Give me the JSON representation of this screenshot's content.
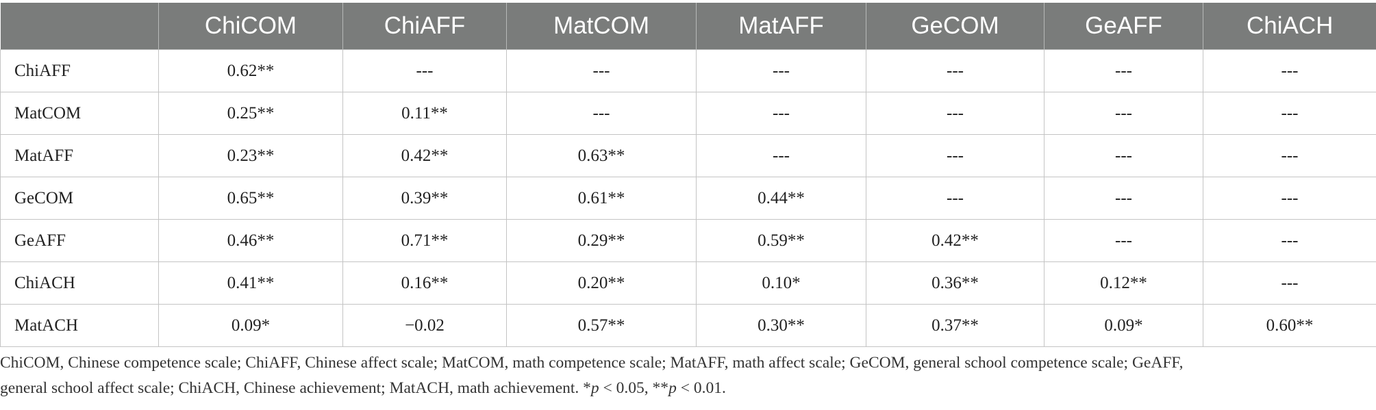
{
  "table": {
    "columns": [
      "",
      "ChiCOM",
      "ChiAFF",
      "MatCOM",
      "MatAFF",
      "GeCOM",
      "GeAFF",
      "ChiACH"
    ],
    "rows": [
      {
        "label": "ChiAFF",
        "cells": [
          "0.62**",
          "---",
          "---",
          "---",
          "---",
          "---",
          "---"
        ]
      },
      {
        "label": "MatCOM",
        "cells": [
          "0.25**",
          "0.11**",
          "---",
          "---",
          "---",
          "---",
          "---"
        ]
      },
      {
        "label": "MatAFF",
        "cells": [
          "0.23**",
          "0.42**",
          "0.63**",
          "---",
          "---",
          "---",
          "---"
        ]
      },
      {
        "label": "GeCOM",
        "cells": [
          "0.65**",
          "0.39**",
          "0.61**",
          "0.44**",
          "---",
          "---",
          "---"
        ]
      },
      {
        "label": "GeAFF",
        "cells": [
          "0.46**",
          "0.71**",
          "0.29**",
          "0.59**",
          "0.42**",
          "---",
          "---"
        ]
      },
      {
        "label": "ChiACH",
        "cells": [
          "0.41**",
          "0.16**",
          "0.20**",
          "0.10*",
          "0.36**",
          "0.12**",
          "---"
        ]
      },
      {
        "label": "MatACH",
        "cells": [
          "0.09*",
          "−0.02",
          "0.57**",
          "0.30**",
          "0.37**",
          "0.09*",
          "0.60**"
        ]
      }
    ]
  },
  "footnote": {
    "text_line1": "ChiCOM, Chinese competence scale; ChiAFF, Chinese affect scale; MatCOM, math competence scale; MatAFF, math affect scale; GeCOM, general school competence scale; GeAFF,",
    "text_line2_prefix": "general school affect scale; ChiACH, Chinese achievement; MatACH, math achievement. *",
    "p_symbol_1": "p",
    "sig_1": " < 0.05, **",
    "p_symbol_2": "p",
    "sig_2": " < 0.01."
  }
}
